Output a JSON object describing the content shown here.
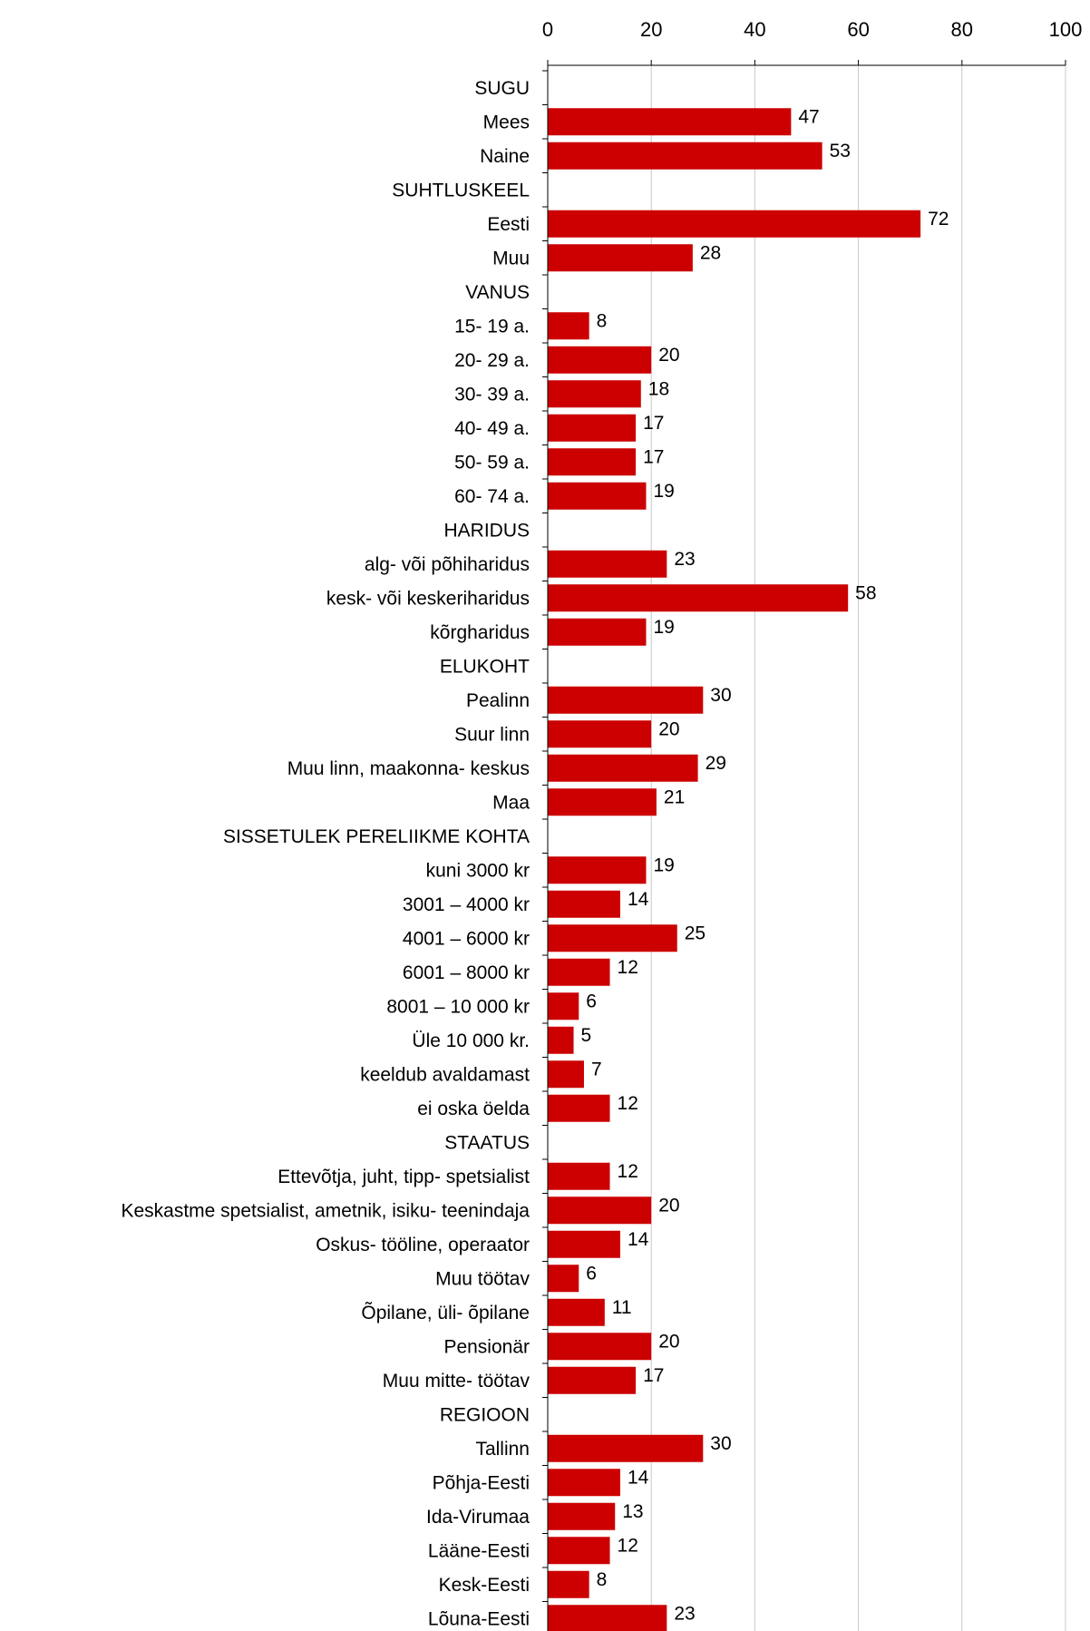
{
  "chart_data": {
    "type": "bar",
    "orientation": "horizontal",
    "title": "",
    "xlabel": "",
    "ylabel": "",
    "xlim": [
      0,
      100
    ],
    "x_ticks": [
      0,
      20,
      40,
      60,
      80,
      100
    ],
    "x_axis_position": "top",
    "grid": true,
    "bar_color": "#cc0000",
    "rows": [
      {
        "label": "SUGU",
        "value": null
      },
      {
        "label": "Mees",
        "value": 47
      },
      {
        "label": "Naine",
        "value": 53
      },
      {
        "label": "SUHTLUSKEEL",
        "value": null
      },
      {
        "label": "Eesti",
        "value": 72
      },
      {
        "label": "Muu",
        "value": 28
      },
      {
        "label": "VANUS",
        "value": null
      },
      {
        "label": "15- 19 a.",
        "value": 8
      },
      {
        "label": "20- 29 a.",
        "value": 20
      },
      {
        "label": "30- 39 a.",
        "value": 18
      },
      {
        "label": "40- 49 a.",
        "value": 17
      },
      {
        "label": "50- 59 a.",
        "value": 17
      },
      {
        "label": "60- 74 a.",
        "value": 19
      },
      {
        "label": "HARIDUS",
        "value": null
      },
      {
        "label": "alg- või põhiharidus",
        "value": 23
      },
      {
        "label": "kesk- või keskeriharidus",
        "value": 58
      },
      {
        "label": "kõrgharidus",
        "value": 19
      },
      {
        "label": "ELUKOHT",
        "value": null
      },
      {
        "label": "Pealinn",
        "value": 30
      },
      {
        "label": "Suur linn",
        "value": 20
      },
      {
        "label": "Muu linn, maakonna- keskus",
        "value": 29
      },
      {
        "label": "Maa",
        "value": 21
      },
      {
        "label": "SISSETULEK PERELIIKME KOHTA",
        "value": null
      },
      {
        "label": "kuni 3000 kr",
        "value": 19
      },
      {
        "label": "3001 – 4000 kr",
        "value": 14
      },
      {
        "label": "4001 – 6000 kr",
        "value": 25
      },
      {
        "label": "6001 – 8000 kr",
        "value": 12
      },
      {
        "label": "8001 – 10 000 kr",
        "value": 6
      },
      {
        "label": "Üle 10 000 kr.",
        "value": 5
      },
      {
        "label": "keeldub avaldamast",
        "value": 7
      },
      {
        "label": "ei oska öelda",
        "value": 12
      },
      {
        "label": "STAATUS",
        "value": null
      },
      {
        "label": "Ettevõtja, juht, tipp- spetsialist",
        "value": 12
      },
      {
        "label": "Keskastme spetsialist, ametnik, isiku- teenindaja",
        "value": 20
      },
      {
        "label": "Oskus- tööline, operaator",
        "value": 14
      },
      {
        "label": "Muu töötav",
        "value": 6
      },
      {
        "label": "Õpilane, üli- õpilane",
        "value": 11
      },
      {
        "label": "Pensionär",
        "value": 20
      },
      {
        "label": "Muu mitte- töötav",
        "value": 17
      },
      {
        "label": "REGIOON",
        "value": null
      },
      {
        "label": "Tallinn",
        "value": 30
      },
      {
        "label": "Põhja-Eesti",
        "value": 14
      },
      {
        "label": "Ida-Virumaa",
        "value": 13
      },
      {
        "label": "Lääne-Eesti",
        "value": 12
      },
      {
        "label": "Kesk-Eesti",
        "value": 8
      },
      {
        "label": "Lõuna-Eesti",
        "value": 23
      }
    ]
  }
}
